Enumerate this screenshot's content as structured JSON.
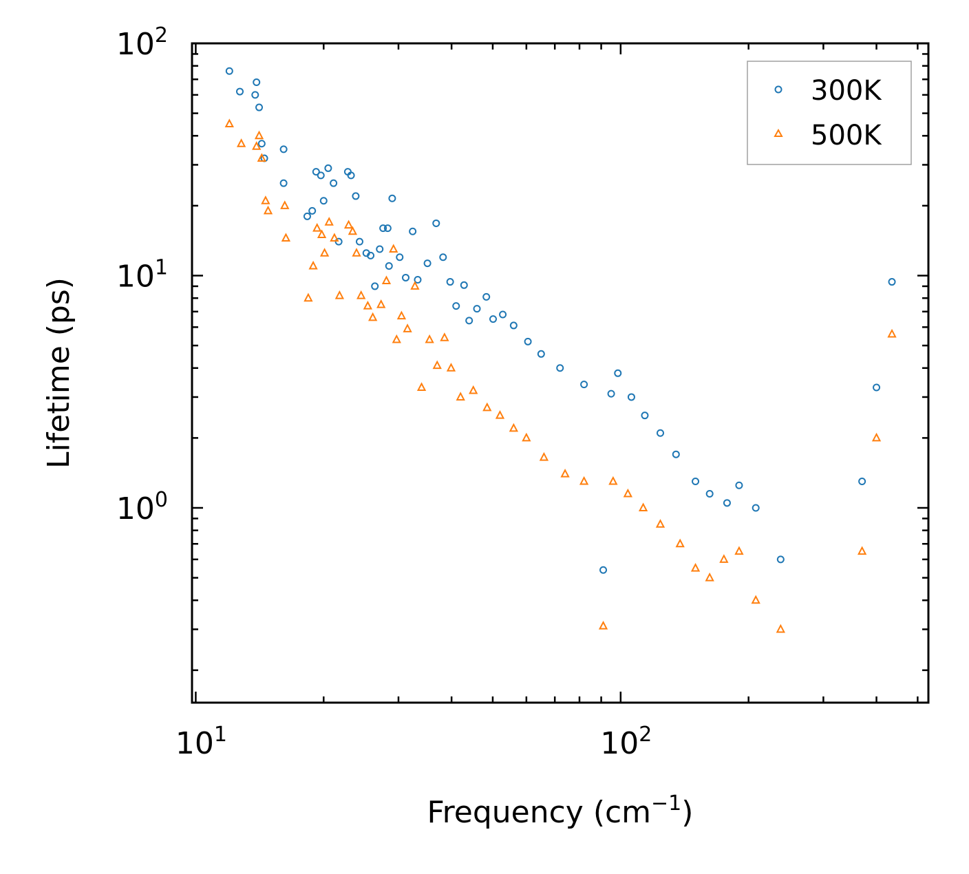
{
  "chart_data": {
    "type": "scatter",
    "title": "",
    "xlabel": "Frequency (cm",
    "xlabel_sup": "−1",
    "xlabel_end": ")",
    "ylabel": "Lifetime (ps)",
    "xscale": "log",
    "yscale": "log",
    "xlim": [
      9.8,
      530
    ],
    "ylim": [
      0.145,
      100
    ],
    "x_ticks": [
      {
        "value": 10,
        "base": "10",
        "exp": "1"
      },
      {
        "value": 100,
        "base": "10",
        "exp": "2"
      }
    ],
    "y_ticks": [
      {
        "value": 1,
        "base": "10",
        "exp": "0"
      },
      {
        "value": 10,
        "base": "10",
        "exp": "1"
      },
      {
        "value": 100,
        "base": "10",
        "exp": "2"
      }
    ],
    "legend_position": "top-right",
    "series": [
      {
        "name": "300K",
        "marker": "circle",
        "color": "#1f77b4",
        "points": [
          [
            12.0,
            76
          ],
          [
            12.7,
            62
          ],
          [
            13.8,
            60
          ],
          [
            13.9,
            68
          ],
          [
            14.1,
            53
          ],
          [
            14.3,
            37
          ],
          [
            14.5,
            32
          ],
          [
            16.1,
            35
          ],
          [
            16.1,
            25
          ],
          [
            18.3,
            18
          ],
          [
            18.8,
            19
          ],
          [
            19.2,
            28
          ],
          [
            19.7,
            27
          ],
          [
            20.0,
            21
          ],
          [
            20.5,
            29
          ],
          [
            21.1,
            25
          ],
          [
            21.7,
            14
          ],
          [
            22.8,
            28
          ],
          [
            23.2,
            27
          ],
          [
            23.8,
            22
          ],
          [
            24.3,
            14
          ],
          [
            25.2,
            12.5
          ],
          [
            25.8,
            12.2
          ],
          [
            26.4,
            9
          ],
          [
            27.1,
            13
          ],
          [
            27.6,
            16
          ],
          [
            28.3,
            16
          ],
          [
            29.0,
            21.5
          ],
          [
            28.5,
            11
          ],
          [
            30.2,
            12
          ],
          [
            31.2,
            9.8
          ],
          [
            32.4,
            15.5
          ],
          [
            33.3,
            9.6
          ],
          [
            35.1,
            11.3
          ],
          [
            36.8,
            16.8
          ],
          [
            38.2,
            12
          ],
          [
            39.7,
            9.4
          ],
          [
            41.0,
            7.4
          ],
          [
            42.8,
            9.1
          ],
          [
            44.0,
            6.4
          ],
          [
            45.9,
            7.2
          ],
          [
            48.3,
            8.1
          ],
          [
            50.1,
            6.5
          ],
          [
            52.8,
            6.8
          ],
          [
            56.0,
            6.1
          ],
          [
            60.5,
            5.2
          ],
          [
            65.0,
            4.6
          ],
          [
            72.0,
            4.0
          ],
          [
            82.0,
            3.4
          ],
          [
            91.0,
            0.54
          ],
          [
            95.0,
            3.1
          ],
          [
            98.5,
            3.8
          ],
          [
            106.0,
            3.0
          ],
          [
            114.0,
            2.5
          ],
          [
            124.0,
            2.1
          ],
          [
            135.0,
            1.7
          ],
          [
            150.0,
            1.3
          ],
          [
            162.0,
            1.15
          ],
          [
            178.0,
            1.05
          ],
          [
            190.0,
            1.25
          ],
          [
            208.0,
            1.0
          ],
          [
            238.0,
            0.6
          ],
          [
            370.0,
            1.3
          ],
          [
            400.0,
            3.3
          ],
          [
            435.0,
            9.4
          ]
        ]
      },
      {
        "name": "500K",
        "marker": "triangle",
        "color": "#ff7f0e",
        "points": [
          [
            12.0,
            45
          ],
          [
            12.8,
            37
          ],
          [
            13.9,
            36
          ],
          [
            14.1,
            40
          ],
          [
            14.3,
            32
          ],
          [
            14.6,
            21
          ],
          [
            14.8,
            19
          ],
          [
            16.2,
            20
          ],
          [
            16.3,
            14.5
          ],
          [
            18.4,
            8
          ],
          [
            18.9,
            11
          ],
          [
            19.3,
            16
          ],
          [
            19.8,
            15
          ],
          [
            20.1,
            12.5
          ],
          [
            20.6,
            17
          ],
          [
            21.2,
            14.5
          ],
          [
            21.8,
            8.2
          ],
          [
            22.9,
            16.5
          ],
          [
            23.4,
            15.5
          ],
          [
            23.9,
            12.5
          ],
          [
            24.5,
            8.2
          ],
          [
            25.4,
            7.4
          ],
          [
            26.1,
            6.6
          ],
          [
            27.3,
            7.5
          ],
          [
            28.1,
            9.5
          ],
          [
            29.2,
            13
          ],
          [
            29.7,
            5.3
          ],
          [
            30.5,
            6.7
          ],
          [
            31.5,
            5.9
          ],
          [
            32.8,
            9
          ],
          [
            34.0,
            3.3
          ],
          [
            35.5,
            5.3
          ],
          [
            37.0,
            4.1
          ],
          [
            38.5,
            5.4
          ],
          [
            39.9,
            4.0
          ],
          [
            42.0,
            3.0
          ],
          [
            45.0,
            3.2
          ],
          [
            48.5,
            2.7
          ],
          [
            52.0,
            2.5
          ],
          [
            56.0,
            2.2
          ],
          [
            60.0,
            2.0
          ],
          [
            66.0,
            1.65
          ],
          [
            74.0,
            1.4
          ],
          [
            82.0,
            1.3
          ],
          [
            91.0,
            0.31
          ],
          [
            96.0,
            1.3
          ],
          [
            104.0,
            1.15
          ],
          [
            113.0,
            1.0
          ],
          [
            124.0,
            0.85
          ],
          [
            138.0,
            0.7
          ],
          [
            150.0,
            0.55
          ],
          [
            162.0,
            0.5
          ],
          [
            175.0,
            0.6
          ],
          [
            190.0,
            0.65
          ],
          [
            208.0,
            0.4
          ],
          [
            238.0,
            0.3
          ],
          [
            370.0,
            0.65
          ],
          [
            400.0,
            2.0
          ],
          [
            435.0,
            5.6
          ]
        ]
      }
    ]
  }
}
